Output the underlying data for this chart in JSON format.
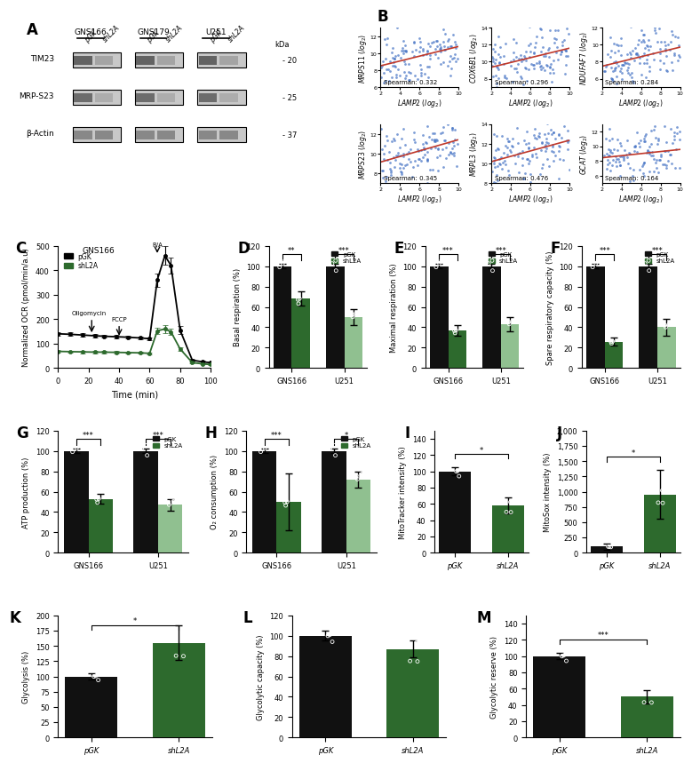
{
  "panel_B": {
    "scatter_plots": [
      {
        "ylabel": "MRPS11 (log₂)",
        "spearman": "0.332",
        "spearman_num": 0.332
      },
      {
        "ylabel": "COX6B1 (log₂)",
        "spearman": "0.296",
        "spearman_num": 0.296
      },
      {
        "ylabel": "NDUFAF7 (log₂)",
        "spearman": "0.284",
        "spearman_num": 0.284
      },
      {
        "ylabel": "MRPS23 (log₂)",
        "spearman": "0.345",
        "spearman_num": 0.345
      },
      {
        "ylabel": "MRPL3 (log₂)",
        "spearman": "0.476",
        "spearman_num": 0.476
      },
      {
        "ylabel": "GCAT (log₂)",
        "spearman": "0.164",
        "spearman_num": 0.164
      }
    ],
    "xlabel": "LAMP2 (log₂)",
    "scatter_ranges": [
      {
        "xlim": [
          2,
          10
        ],
        "ylim": [
          6,
          13
        ]
      },
      {
        "xlim": [
          2,
          10
        ],
        "ylim": [
          7,
          14
        ]
      },
      {
        "xlim": [
          2,
          10
        ],
        "ylim": [
          5,
          12
        ]
      },
      {
        "xlim": [
          2,
          10
        ],
        "ylim": [
          7,
          13
        ]
      },
      {
        "xlim": [
          2,
          10
        ],
        "ylim": [
          8,
          14
        ]
      },
      {
        "xlim": [
          2,
          10
        ],
        "ylim": [
          5,
          13
        ]
      }
    ]
  },
  "panel_C": {
    "ylabel": "Normalized OCR (pmol/min/a.u)",
    "xlabel": "Time (min)",
    "ylim": [
      0,
      500
    ],
    "xlim": [
      0,
      100
    ],
    "title": "GNS166"
  },
  "panel_D": {
    "pGK_vals": [
      100,
      100
    ],
    "shL2A_vals": [
      68,
      50
    ],
    "pGK_err": [
      2,
      2
    ],
    "shL2A_err": [
      7,
      8
    ],
    "categories": [
      "GNS166",
      "U251"
    ],
    "ylabel": "Basal respiration (%)",
    "ylim": [
      0,
      120
    ],
    "sig": [
      "**",
      "***"
    ],
    "n_pairs": 2
  },
  "panel_E": {
    "pGK_vals": [
      100,
      100
    ],
    "shL2A_vals": [
      37,
      43
    ],
    "pGK_err": [
      2,
      2
    ],
    "shL2A_err": [
      5,
      7
    ],
    "categories": [
      "GNS166",
      "U251"
    ],
    "ylabel": "Maximal respiration (%)",
    "ylim": [
      0,
      120
    ],
    "sig": [
      "***",
      "***"
    ],
    "n_pairs": 2
  },
  "panel_F": {
    "pGK_vals": [
      100,
      100
    ],
    "shL2A_vals": [
      26,
      40
    ],
    "pGK_err": [
      2,
      2
    ],
    "shL2A_err": [
      4,
      8
    ],
    "categories": [
      "GNS166",
      "U251"
    ],
    "ylabel": "Spare respiratory capacity (%)",
    "ylim": [
      0,
      120
    ],
    "sig": [
      "***",
      "***"
    ],
    "n_pairs": 2
  },
  "panel_G": {
    "pGK_vals": [
      100,
      100
    ],
    "shL2A_vals": [
      53,
      47
    ],
    "pGK_err": [
      2,
      2
    ],
    "shL2A_err": [
      5,
      6
    ],
    "categories": [
      "GNS166",
      "U251"
    ],
    "ylabel": "ATP production (%)",
    "ylim": [
      0,
      120
    ],
    "sig": [
      "***",
      "***"
    ],
    "n_pairs": 2
  },
  "panel_H": {
    "pGK_vals": [
      100,
      100
    ],
    "shL2A_vals": [
      50,
      72
    ],
    "pGK_err": [
      2,
      2
    ],
    "shL2A_err": [
      28,
      8
    ],
    "categories": [
      "GNS166",
      "U251"
    ],
    "ylabel": "O₂ consumption (%)",
    "ylim": [
      0,
      120
    ],
    "sig": [
      "***",
      "*"
    ],
    "n_pairs": 2
  },
  "panel_I": {
    "pGK_vals": [
      100
    ],
    "shL2A_vals": [
      58
    ],
    "pGK_err": [
      5
    ],
    "shL2A_err": [
      10
    ],
    "categories": [
      "pGK",
      "shL2A"
    ],
    "ylabel": "MitoTracker intensity (%)",
    "ylim": [
      0,
      150
    ],
    "sig": [
      "*"
    ],
    "n_pairs": 1
  },
  "panel_J": {
    "pGK_vals": [
      100
    ],
    "shL2A_vals": [
      950
    ],
    "pGK_err": [
      50
    ],
    "shL2A_err": [
      400
    ],
    "categories": [
      "pGK",
      "shL2A"
    ],
    "ylabel": "MitoSox intensity (%)",
    "ylim": [
      0,
      2000
    ],
    "sig": [
      "*"
    ],
    "n_pairs": 1
  },
  "panel_K": {
    "pGK_vals": [
      100
    ],
    "shL2A_vals": [
      155
    ],
    "pGK_err": [
      5
    ],
    "shL2A_err": [
      28
    ],
    "categories": [
      "pGK",
      "shL2A"
    ],
    "ylabel": "Glycolysis (%)",
    "ylim": [
      0,
      200
    ],
    "sig": [
      "*"
    ],
    "n_pairs": 1
  },
  "panel_L": {
    "pGK_vals": [
      100
    ],
    "shL2A_vals": [
      87
    ],
    "pGK_err": [
      5
    ],
    "shL2A_err": [
      8
    ],
    "categories": [
      "pGK",
      "shL2A"
    ],
    "ylabel": "Glycolytic capacity (%)",
    "ylim": [
      0,
      120
    ],
    "sig": [],
    "n_pairs": 1
  },
  "panel_M": {
    "pGK_vals": [
      100
    ],
    "shL2A_vals": [
      50
    ],
    "pGK_err": [
      4
    ],
    "shL2A_err": [
      8
    ],
    "categories": [
      "pGK",
      "shL2A"
    ],
    "ylabel": "Glycolytic reserve (%)",
    "ylim": [
      0,
      150
    ],
    "sig": [
      "***"
    ],
    "n_pairs": 1
  },
  "colors": {
    "pGK": "#111111",
    "shL2A_dark": "#2d6a2d",
    "shL2A_light": "#90c090",
    "scatter_dot": "#4472c4",
    "regression_line": "#c0392b"
  }
}
